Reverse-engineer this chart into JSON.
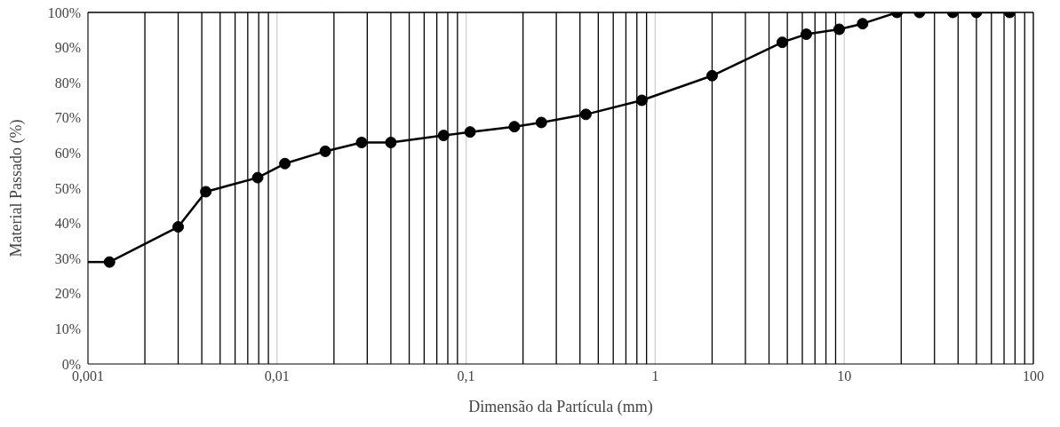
{
  "chart_data": {
    "type": "line",
    "xlabel": "Dimensão da Partícula (mm)",
    "ylabel": "Material Passado (%)",
    "log": "x",
    "grid": "x",
    "marker": "circle",
    "line_style": "solid",
    "xlim": [
      0.001,
      100
    ],
    "xticks": [
      {
        "value": 0.001,
        "label": "0,001"
      },
      {
        "value": 0.002,
        "label": null
      },
      {
        "value": 0.003,
        "label": null
      },
      {
        "value": 0.004,
        "label": null
      },
      {
        "value": 0.005,
        "label": null
      },
      {
        "value": 0.006,
        "label": null
      },
      {
        "value": 0.007,
        "label": null
      },
      {
        "value": 0.008,
        "label": null
      },
      {
        "value": 0.009,
        "label": null
      },
      {
        "value": 0.01,
        "label": "0,01"
      },
      {
        "value": 0.02,
        "label": null
      },
      {
        "value": 0.03,
        "label": null
      },
      {
        "value": 0.04,
        "label": null
      },
      {
        "value": 0.05,
        "label": null
      },
      {
        "value": 0.06,
        "label": null
      },
      {
        "value": 0.07,
        "label": null
      },
      {
        "value": 0.08,
        "label": null
      },
      {
        "value": 0.09,
        "label": null
      },
      {
        "value": 0.1,
        "label": "0,1"
      },
      {
        "value": 0.2,
        "label": null
      },
      {
        "value": 0.3,
        "label": null
      },
      {
        "value": 0.4,
        "label": null
      },
      {
        "value": 0.5,
        "label": null
      },
      {
        "value": 0.6,
        "label": null
      },
      {
        "value": 0.7,
        "label": null
      },
      {
        "value": 0.8,
        "label": null
      },
      {
        "value": 0.9,
        "label": null
      },
      1,
      {
        "value": 2,
        "label": null
      },
      {
        "value": 3,
        "label": null
      },
      {
        "value": 4,
        "label": null
      },
      {
        "value": 5,
        "label": null
      },
      {
        "value": 6,
        "label": null
      },
      {
        "value": 7,
        "label": null
      },
      {
        "value": 8,
        "label": null
      },
      {
        "value": 9,
        "label": null
      },
      10,
      {
        "value": 20,
        "label": null
      },
      {
        "value": 30,
        "label": null
      },
      {
        "value": 40,
        "label": null
      },
      {
        "value": 50,
        "label": null
      },
      {
        "value": 60,
        "label": null
      },
      {
        "value": 70,
        "label": null
      },
      {
        "value": 80,
        "label": null
      },
      {
        "value": 90,
        "label": null
      },
      100
    ],
    "ylim": [
      0,
      100
    ],
    "yticks": [
      {
        "value": 0,
        "label": "0%"
      },
      {
        "value": 10,
        "label": "10%"
      },
      {
        "value": 20,
        "label": "20%"
      },
      {
        "value": 30,
        "label": "30%"
      },
      {
        "value": 40,
        "label": "40%"
      },
      {
        "value": 50,
        "label": "50%"
      },
      {
        "value": 60,
        "label": "60%"
      },
      {
        "value": 70,
        "label": "70%"
      },
      {
        "value": 80,
        "label": "80%"
      },
      {
        "value": 90,
        "label": "90%"
      },
      {
        "value": 100,
        "label": "100%"
      }
    ],
    "series": [
      {
        "color": "#000000",
        "x": [
          0.0013,
          0.003,
          0.0042,
          0.0079,
          0.011,
          0.018,
          0.028,
          0.04,
          0.076,
          0.105,
          0.18,
          0.25,
          0.43,
          0.85,
          2,
          4.7,
          6.3,
          9.4,
          12.5,
          19,
          25,
          37.5,
          50,
          75
        ],
        "values": [
          29,
          39,
          49,
          53,
          57,
          60.5,
          63,
          63,
          65,
          66,
          67.5,
          68.7,
          71,
          75,
          82,
          91.5,
          93.8,
          95.2,
          96.8,
          100,
          100,
          100,
          100,
          100
        ]
      },
      {
        "color": "#000000",
        "marker": "none",
        "x": [
          0.001,
          0.0013
        ],
        "values": [
          29,
          29
        ]
      }
    ]
  }
}
